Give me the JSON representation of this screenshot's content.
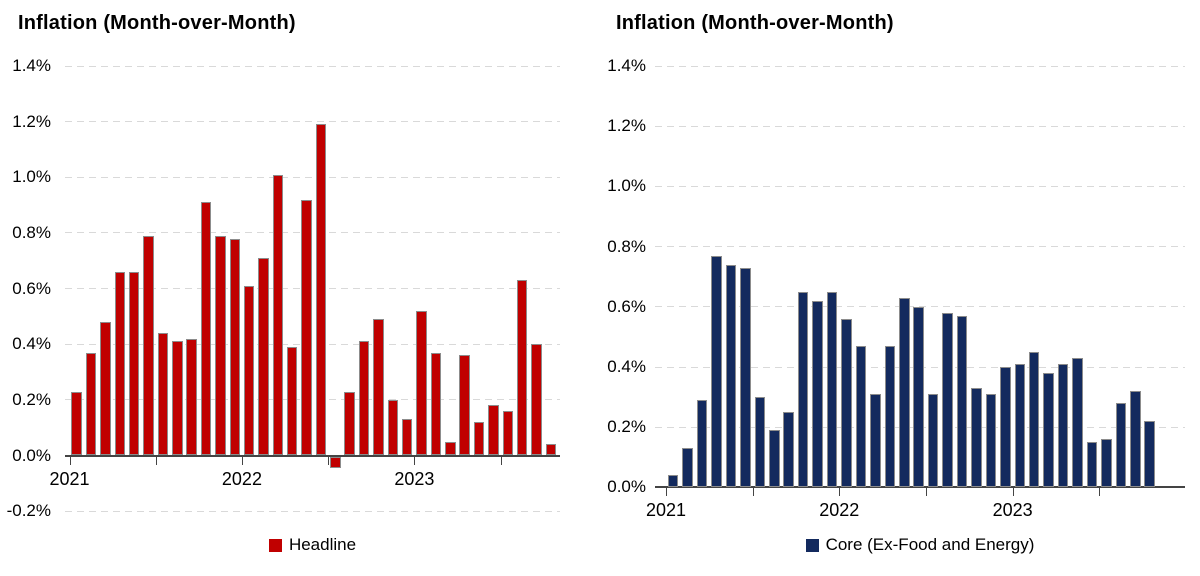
{
  "page": {
    "background": "#ffffff"
  },
  "chart_data": [
    {
      "type": "bar",
      "title": "Inflation (Month-over-Month)",
      "legend_position": "bottom",
      "grid": "horizontal-dashed",
      "ylim": [
        -0.2,
        1.4
      ],
      "y_unit": "%",
      "y_tick_labels": [
        "1.4%",
        "1.2%",
        "1.0%",
        "0.8%",
        "0.6%",
        "0.4%",
        "0.2%",
        "0.0%",
        "-0.2%"
      ],
      "x_tick_labels": [
        "2021",
        "2022",
        "2023"
      ],
      "x": [
        "2021-01",
        "2021-02",
        "2021-03",
        "2021-04",
        "2021-05",
        "2021-06",
        "2021-07",
        "2021-08",
        "2021-09",
        "2021-10",
        "2021-11",
        "2021-12",
        "2022-01",
        "2022-02",
        "2022-03",
        "2022-04",
        "2022-05",
        "2022-06",
        "2022-07",
        "2022-08",
        "2022-09",
        "2022-10",
        "2022-11",
        "2022-12",
        "2023-01",
        "2023-02",
        "2023-03",
        "2023-04",
        "2023-05",
        "2023-06",
        "2023-07",
        "2023-08",
        "2023-09",
        "2023-10"
      ],
      "series": [
        {
          "name": "Headline",
          "color": "#c00000",
          "values": [
            0.23,
            0.37,
            0.48,
            0.66,
            0.66,
            0.79,
            0.44,
            0.41,
            0.42,
            0.91,
            0.79,
            0.78,
            0.61,
            0.71,
            1.01,
            0.39,
            0.92,
            1.19,
            -0.04,
            0.23,
            0.41,
            0.49,
            0.2,
            0.13,
            0.52,
            0.37,
            0.05,
            0.36,
            0.12,
            0.18,
            0.16,
            0.63,
            0.4,
            0.04
          ]
        }
      ]
    },
    {
      "type": "bar",
      "title": "Inflation (Month-over-Month)",
      "legend_position": "bottom",
      "grid": "horizontal-dashed",
      "ylim": [
        0.0,
        1.4
      ],
      "y_unit": "%",
      "y_tick_labels": [
        "1.4%",
        "1.2%",
        "1.0%",
        "0.8%",
        "0.6%",
        "0.4%",
        "0.2%",
        "0.0%"
      ],
      "x_tick_labels": [
        "2021",
        "2022",
        "2023"
      ],
      "x": [
        "2021-01",
        "2021-02",
        "2021-03",
        "2021-04",
        "2021-05",
        "2021-06",
        "2021-07",
        "2021-08",
        "2021-09",
        "2021-10",
        "2021-11",
        "2021-12",
        "2022-01",
        "2022-02",
        "2022-03",
        "2022-04",
        "2022-05",
        "2022-06",
        "2022-07",
        "2022-08",
        "2022-09",
        "2022-10",
        "2022-11",
        "2022-12",
        "2023-01",
        "2023-02",
        "2023-03",
        "2023-04",
        "2023-05",
        "2023-06",
        "2023-07",
        "2023-08",
        "2023-09",
        "2023-10"
      ],
      "series": [
        {
          "name": "Core (Ex-Food and Energy)",
          "color": "#132a5e",
          "values": [
            0.04,
            0.13,
            0.29,
            0.77,
            0.74,
            0.73,
            0.3,
            0.19,
            0.25,
            0.65,
            0.62,
            0.65,
            0.56,
            0.47,
            0.31,
            0.47,
            0.63,
            0.6,
            0.31,
            0.58,
            0.57,
            0.33,
            0.31,
            0.4,
            0.41,
            0.45,
            0.38,
            0.41,
            0.43,
            0.15,
            0.16,
            0.28,
            0.32,
            0.22
          ]
        }
      ]
    }
  ]
}
